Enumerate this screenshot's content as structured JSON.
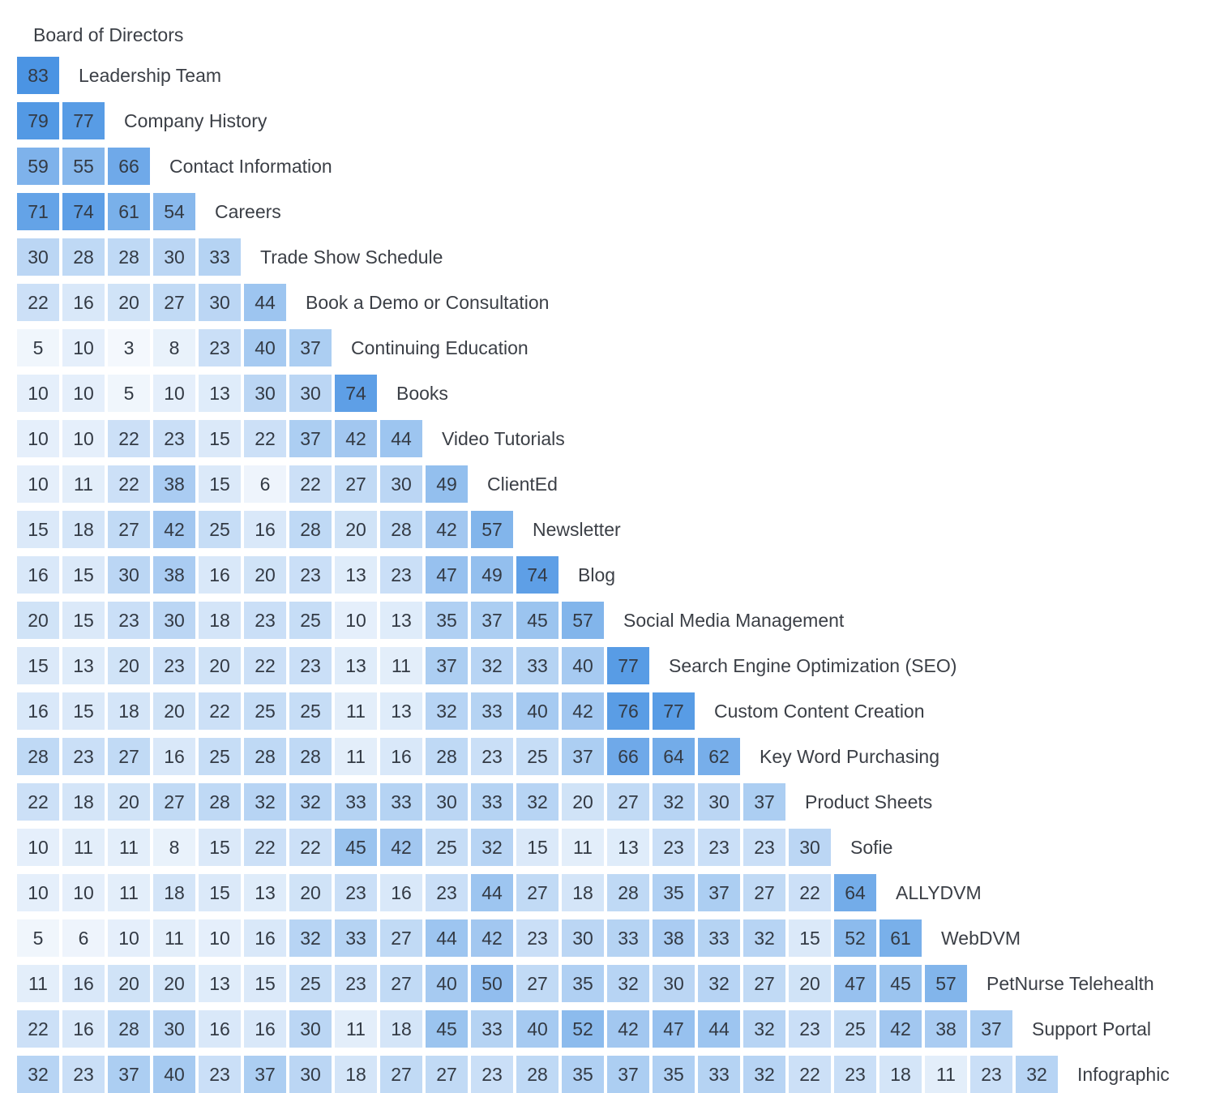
{
  "chart_data": {
    "type": "heatmap",
    "labels": [
      "Board of Directors",
      "Leadership Team",
      "Company History",
      "Contact Information",
      "Careers",
      "Trade Show Schedule",
      "Book a Demo or Consultation",
      "Continuing Education",
      "Books",
      "Video Tutorials",
      "ClientEd",
      "Newsletter",
      "Blog",
      "Social Media Management",
      "Search Engine Optimization (SEO)",
      "Custom Content Creation",
      "Key Word Purchasing",
      "Product Sheets",
      "Sofie",
      "ALLYDVM",
      "WebDVM",
      "PetNurse Telehealth",
      "Support Portal",
      "Infographic"
    ],
    "values": [
      [
        83
      ],
      [
        79,
        77
      ],
      [
        59,
        55,
        66
      ],
      [
        71,
        74,
        61,
        54
      ],
      [
        30,
        28,
        28,
        30,
        33
      ],
      [
        22,
        16,
        20,
        27,
        30,
        44
      ],
      [
        5,
        10,
        3,
        8,
        23,
        40,
        37
      ],
      [
        10,
        10,
        5,
        10,
        13,
        30,
        30,
        74
      ],
      [
        10,
        10,
        22,
        23,
        15,
        22,
        37,
        42,
        44
      ],
      [
        10,
        11,
        22,
        38,
        15,
        6,
        22,
        27,
        30,
        49
      ],
      [
        15,
        18,
        27,
        42,
        25,
        16,
        28,
        20,
        28,
        42,
        57
      ],
      [
        16,
        15,
        30,
        38,
        16,
        20,
        23,
        13,
        23,
        47,
        49,
        74
      ],
      [
        20,
        15,
        23,
        30,
        18,
        23,
        25,
        10,
        13,
        35,
        37,
        45,
        57
      ],
      [
        15,
        13,
        20,
        23,
        20,
        22,
        23,
        13,
        11,
        37,
        32,
        33,
        40,
        77
      ],
      [
        16,
        15,
        18,
        20,
        22,
        25,
        25,
        11,
        13,
        32,
        33,
        40,
        42,
        76,
        77
      ],
      [
        28,
        23,
        27,
        16,
        25,
        28,
        28,
        11,
        16,
        28,
        23,
        25,
        37,
        66,
        64,
        62
      ],
      [
        22,
        18,
        20,
        27,
        28,
        32,
        32,
        33,
        33,
        30,
        33,
        32,
        20,
        27,
        32,
        30,
        37
      ],
      [
        10,
        11,
        11,
        8,
        15,
        22,
        22,
        45,
        42,
        25,
        32,
        15,
        11,
        13,
        23,
        23,
        23,
        30
      ],
      [
        10,
        10,
        11,
        18,
        15,
        13,
        20,
        23,
        16,
        23,
        44,
        27,
        18,
        28,
        35,
        37,
        27,
        22,
        64
      ],
      [
        5,
        6,
        10,
        11,
        10,
        16,
        32,
        33,
        27,
        44,
        42,
        23,
        30,
        33,
        38,
        33,
        32,
        15,
        52,
        61
      ],
      [
        11,
        16,
        20,
        20,
        13,
        15,
        25,
        23,
        27,
        40,
        50,
        27,
        35,
        32,
        30,
        32,
        27,
        20,
        47,
        45,
        57
      ],
      [
        22,
        16,
        28,
        30,
        16,
        16,
        30,
        11,
        18,
        45,
        33,
        40,
        52,
        42,
        47,
        44,
        32,
        23,
        25,
        42,
        38,
        37
      ],
      [
        32,
        23,
        37,
        40,
        23,
        37,
        30,
        18,
        27,
        27,
        23,
        28,
        35,
        37,
        35,
        33,
        32,
        22,
        23,
        18,
        11,
        23,
        32
      ]
    ],
    "colors": {
      "low": "#f4f8fd",
      "high": "#4b94e3",
      "text": "#333a44"
    }
  }
}
